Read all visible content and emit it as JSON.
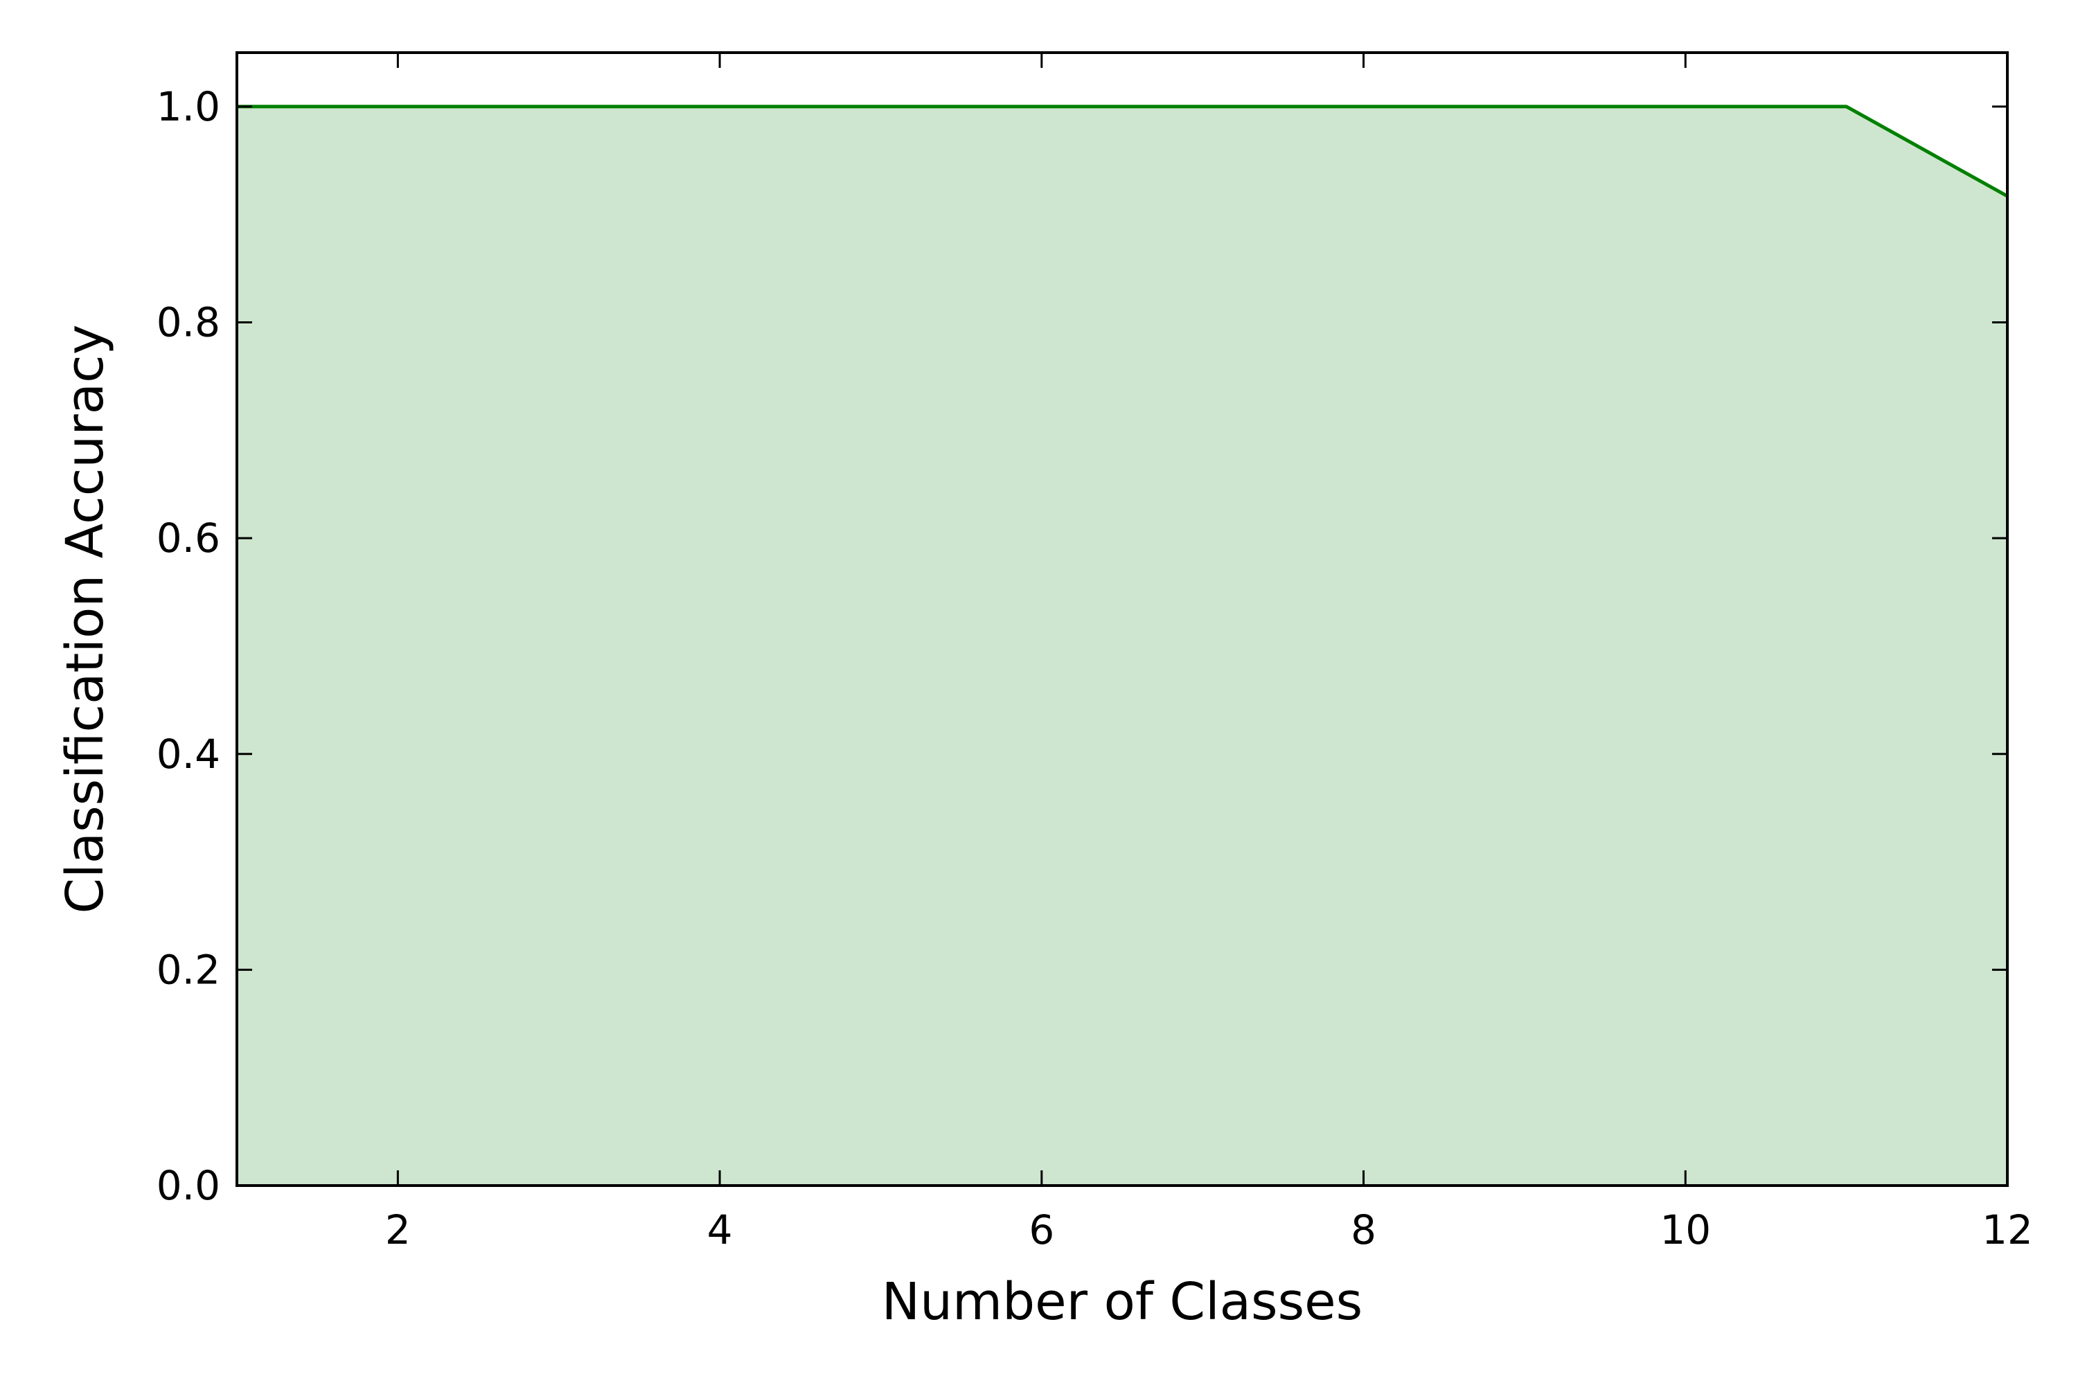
{
  "chart_data": {
    "type": "area",
    "title": "",
    "xlabel": "Number of Classes",
    "ylabel": "Classification Accuracy",
    "xlim": [
      1,
      12
    ],
    "ylim": [
      0,
      1.05
    ],
    "x_ticks": [
      2,
      4,
      6,
      8,
      10,
      12
    ],
    "y_ticks": [
      0.0,
      0.2,
      0.4,
      0.6,
      0.8,
      1.0
    ],
    "x_tick_labels": [
      "2",
      "4",
      "6",
      "8",
      "10",
      "12"
    ],
    "y_tick_labels": [
      "0.0",
      "0.2",
      "0.4",
      "0.6",
      "0.8",
      "1.0"
    ],
    "grid": false,
    "legend": "none",
    "series": [
      {
        "x": [
          1,
          2,
          3,
          4,
          5,
          6,
          7,
          8,
          9,
          10,
          11,
          12
        ],
        "values": [
          1.0,
          1.0,
          1.0,
          1.0,
          1.0,
          1.0,
          1.0,
          1.0,
          1.0,
          1.0,
          1.0,
          0.917
        ],
        "line_color": "#008000",
        "fill_color": "#cee6cf"
      }
    ]
  }
}
